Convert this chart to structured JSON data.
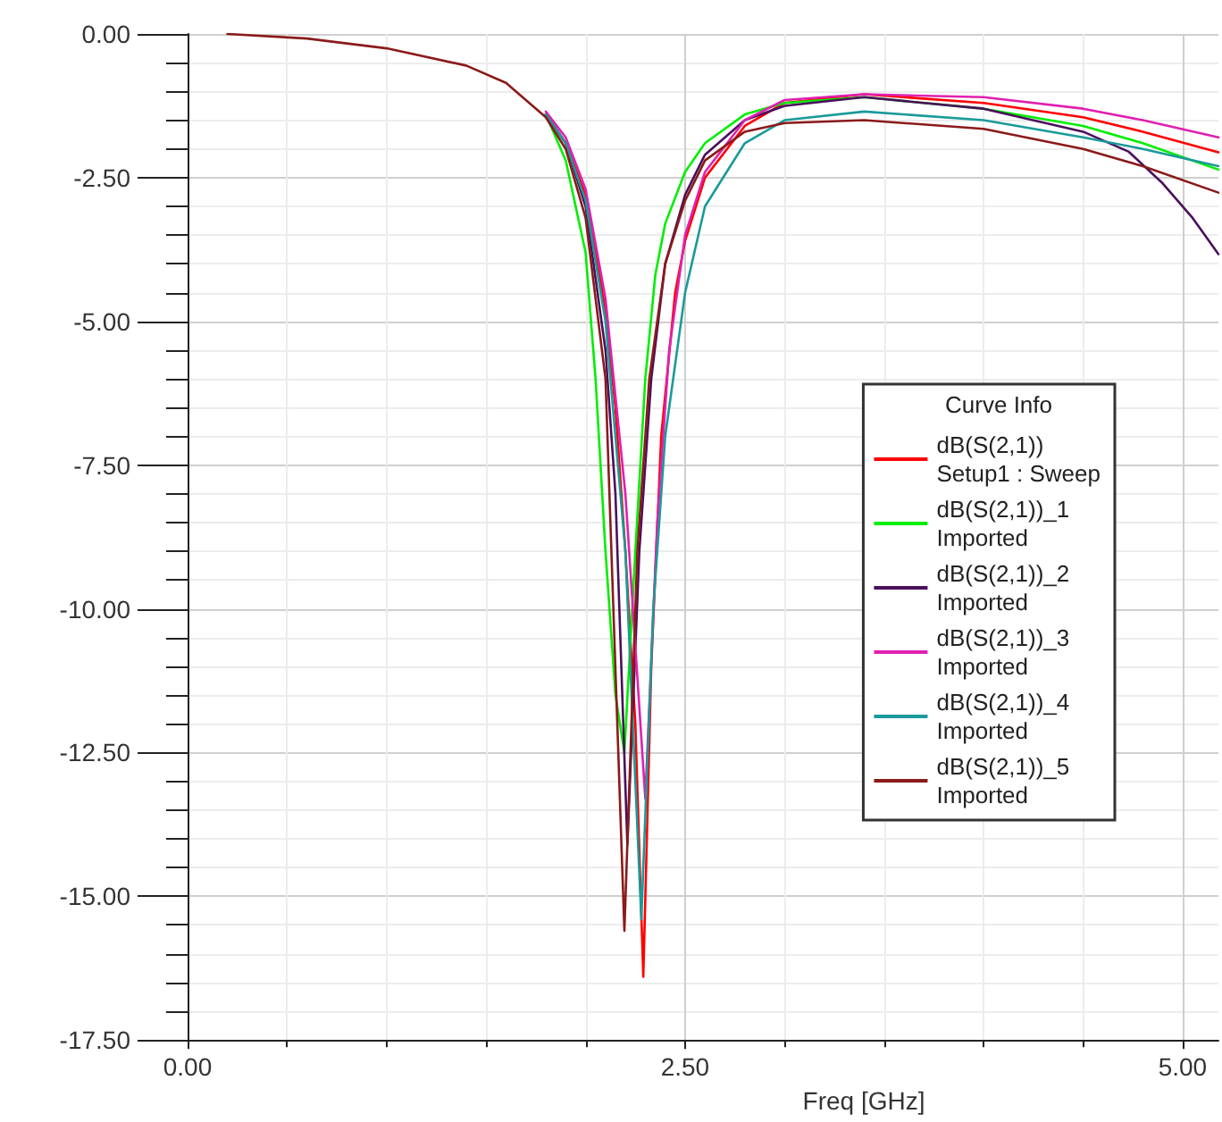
{
  "chart_data": {
    "type": "line",
    "xlabel": "Freq [GHz]",
    "legend_title": "Curve Info",
    "legend": "right",
    "grid": true,
    "marker": "none",
    "line_style": "solid",
    "xlim": [
      0,
      5.18
    ],
    "xticks": [
      {
        "value": 0,
        "label": "0.00"
      },
      {
        "value": 2.5,
        "label": "2.50"
      },
      {
        "value": 5,
        "label": "5.00"
      }
    ],
    "ylim": [
      -17.5,
      0
    ],
    "yticks": [
      {
        "value": -17.5,
        "label": "-17.50"
      },
      {
        "value": -15,
        "label": "-15.00"
      },
      {
        "value": -12.5,
        "label": "-12.50"
      },
      {
        "value": -10,
        "label": "-10.00"
      },
      {
        "value": -7.5,
        "label": "-7.50"
      },
      {
        "value": -5,
        "label": "-5.00"
      },
      {
        "value": -2.5,
        "label": "-2.50"
      },
      {
        "value": 0,
        "label": "0.00"
      }
    ],
    "series": [
      {
        "name": "dB(S(2,1))\nSetup1 : Sweep",
        "color": "#ff0000",
        "x": [
          1.8,
          1.9,
          2.0,
          2.1,
          2.15,
          2.2,
          2.25,
          2.29,
          2.33,
          2.38,
          2.45,
          2.5,
          2.6,
          2.8,
          3.0,
          3.4,
          4.0,
          4.5,
          4.8,
          5.18
        ],
        "values": [
          -1.4,
          -1.9,
          -2.8,
          -4.8,
          -6.5,
          -9,
          -12,
          -16.4,
          -11,
          -7,
          -4.5,
          -3.6,
          -2.5,
          -1.6,
          -1.2,
          -1.05,
          -1.2,
          -1.45,
          -1.7,
          -2.06
        ]
      },
      {
        "name": "dB(S(2,1))_1\nImported",
        "color": "#00ee00",
        "x": [
          1.8,
          1.9,
          2.0,
          2.05,
          2.1,
          2.15,
          2.195,
          2.25,
          2.3,
          2.35,
          2.4,
          2.5,
          2.6,
          2.8,
          3.0,
          3.4,
          4.0,
          4.5,
          4.8,
          5.18
        ],
        "values": [
          -1.4,
          -2.2,
          -3.8,
          -6,
          -9,
          -11.5,
          -12.5,
          -9,
          -6,
          -4.2,
          -3.3,
          -2.4,
          -1.9,
          -1.4,
          -1.2,
          -1.1,
          -1.3,
          -1.6,
          -1.9,
          -2.36
        ]
      },
      {
        "name": "dB(S(2,1))_2\nImported",
        "color": "#4b0f5c",
        "x": [
          1.8,
          1.9,
          2.0,
          2.1,
          2.15,
          2.21,
          2.27,
          2.33,
          2.4,
          2.5,
          2.6,
          2.8,
          3.0,
          3.4,
          4.0,
          4.5,
          4.73,
          4.9,
          5.05,
          5.18
        ],
        "values": [
          -1.4,
          -1.9,
          -3.0,
          -5.5,
          -8,
          -14.1,
          -9,
          -6,
          -4,
          -2.8,
          -2.1,
          -1.5,
          -1.25,
          -1.1,
          -1.3,
          -1.7,
          -2.05,
          -2.6,
          -3.2,
          -3.83
        ]
      },
      {
        "name": "dB(S(2,1))_3\nImported",
        "color": "#e020b0",
        "x": [
          1.8,
          1.9,
          2.0,
          2.1,
          2.2,
          2.3,
          2.36,
          2.42,
          2.5,
          2.6,
          2.8,
          3.0,
          3.4,
          4.0,
          4.5,
          4.8,
          5.18
        ],
        "values": [
          -1.35,
          -1.8,
          -2.7,
          -4.6,
          -8,
          -13.3,
          -8.5,
          -5.5,
          -3.5,
          -2.4,
          -1.5,
          -1.15,
          -1.05,
          -1.1,
          -1.3,
          -1.5,
          -1.8
        ]
      },
      {
        "name": "dB(S(2,1))_4\nImported",
        "color": "#1a9a9a",
        "x": [
          1.8,
          1.9,
          2.0,
          2.1,
          2.2,
          2.28,
          2.34,
          2.4,
          2.5,
          2.6,
          2.8,
          3.0,
          3.4,
          4.0,
          4.5,
          4.8,
          5.18
        ],
        "values": [
          -1.4,
          -1.9,
          -2.9,
          -5,
          -9,
          -15.4,
          -10,
          -7,
          -4.5,
          -3,
          -1.9,
          -1.5,
          -1.35,
          -1.5,
          -1.8,
          -2.0,
          -2.3
        ]
      },
      {
        "name": "dB(S(2,1))_5\nImported",
        "color": "#8b1a1a",
        "x": [
          0.2,
          0.6,
          1.0,
          1.4,
          1.6,
          1.8,
          1.9,
          2.0,
          2.1,
          2.195,
          2.26,
          2.32,
          2.4,
          2.5,
          2.6,
          2.8,
          3.0,
          3.4,
          4.0,
          4.5,
          4.8,
          5.18
        ],
        "values": [
          0,
          -0.08,
          -0.25,
          -0.55,
          -0.85,
          -1.45,
          -2.0,
          -3.2,
          -6,
          -15.6,
          -9,
          -6,
          -4,
          -2.9,
          -2.2,
          -1.7,
          -1.55,
          -1.5,
          -1.65,
          -2.0,
          -2.3,
          -2.76
        ]
      }
    ]
  }
}
